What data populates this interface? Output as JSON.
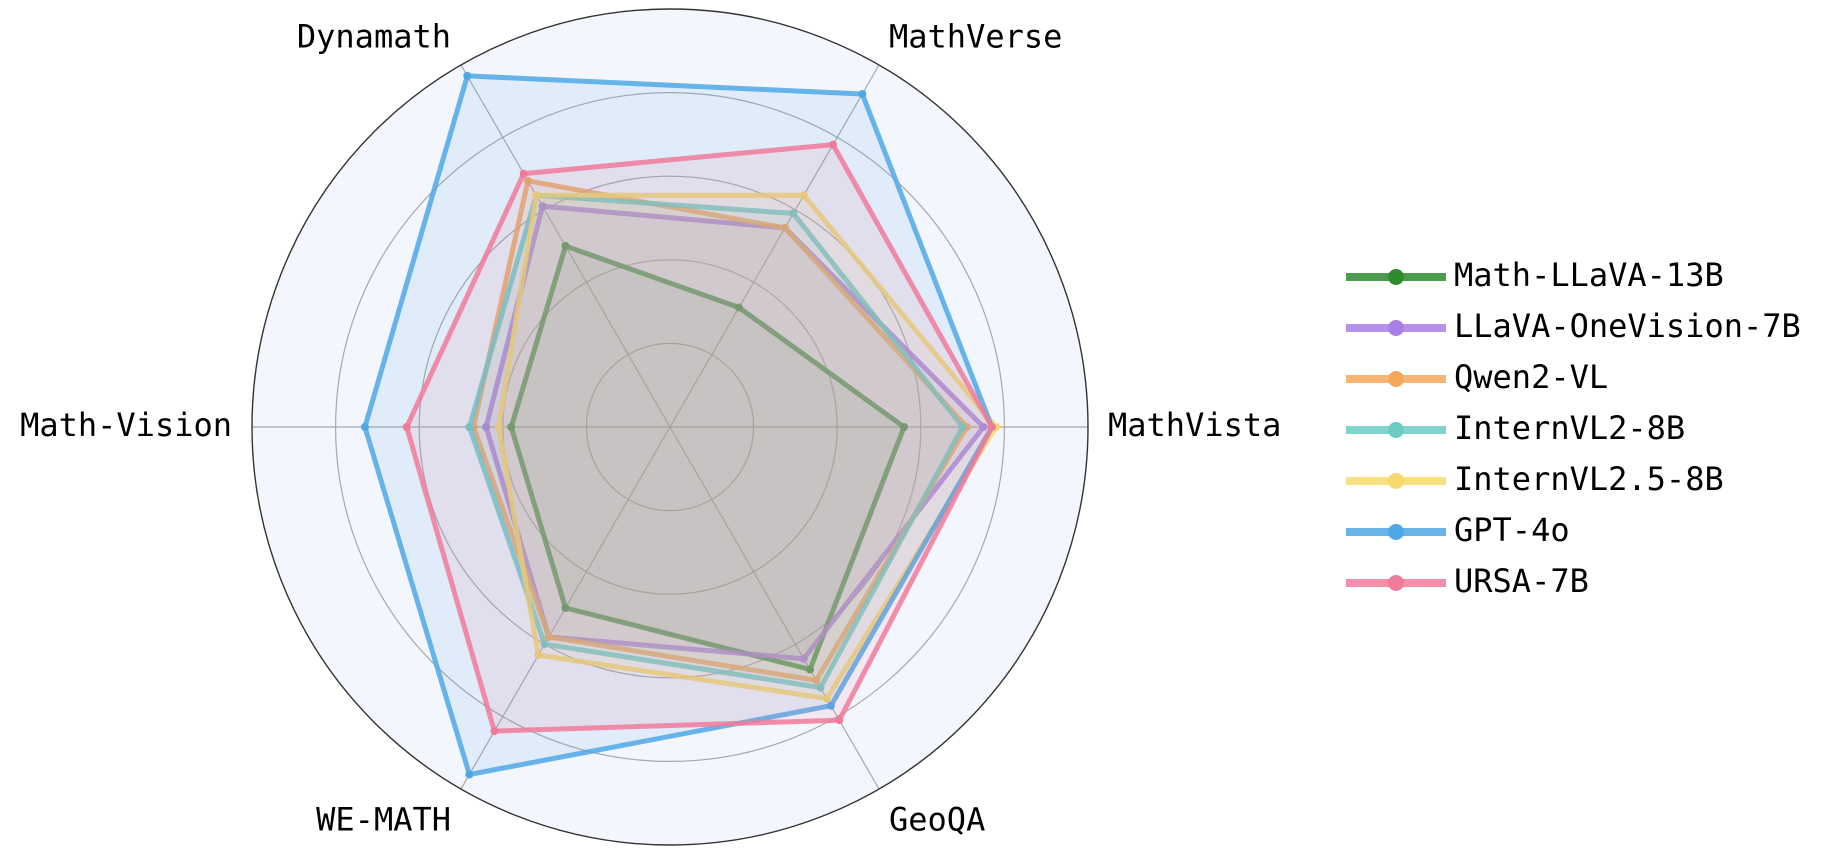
{
  "chart_data": {
    "type": "radar",
    "title": "",
    "axes": [
      "MathVista",
      "MathVerse",
      "Dynamath",
      "Math-Vision",
      "WE-MATH",
      "GeoQA"
    ],
    "radial_range": [
      0,
      1
    ],
    "grid": true,
    "grid_levels": [
      0.2,
      0.4,
      0.6,
      0.8
    ],
    "legend_position": "right",
    "series": [
      {
        "name": "Math-LLaVA-13B",
        "color": "#2e8b2e",
        "values": [
          0.56,
          0.33,
          0.5,
          0.38,
          0.5,
          0.67
        ]
      },
      {
        "name": "LLaVA-OneVision-7B",
        "color": "#a97ee8",
        "values": [
          0.75,
          0.55,
          0.61,
          0.44,
          0.58,
          0.64
        ]
      },
      {
        "name": "Qwen2-VL",
        "color": "#f4a85a",
        "values": [
          0.71,
          0.55,
          0.68,
          0.47,
          0.58,
          0.7
        ]
      },
      {
        "name": "InternVL2-8B",
        "color": "#6bcbc5",
        "values": [
          0.7,
          0.59,
          0.64,
          0.48,
          0.6,
          0.72
        ]
      },
      {
        "name": "InternVL2.5-8B",
        "color": "#f7d96a",
        "values": [
          0.78,
          0.64,
          0.64,
          0.41,
          0.63,
          0.75
        ]
      },
      {
        "name": "GPT-4o",
        "color": "#4fa8e6",
        "values": [
          0.77,
          0.92,
          0.97,
          0.73,
          0.96,
          0.77
        ]
      },
      {
        "name": "URSA-7B",
        "color": "#f07a9a",
        "values": [
          0.77,
          0.78,
          0.7,
          0.63,
          0.84,
          0.81
        ]
      }
    ]
  }
}
